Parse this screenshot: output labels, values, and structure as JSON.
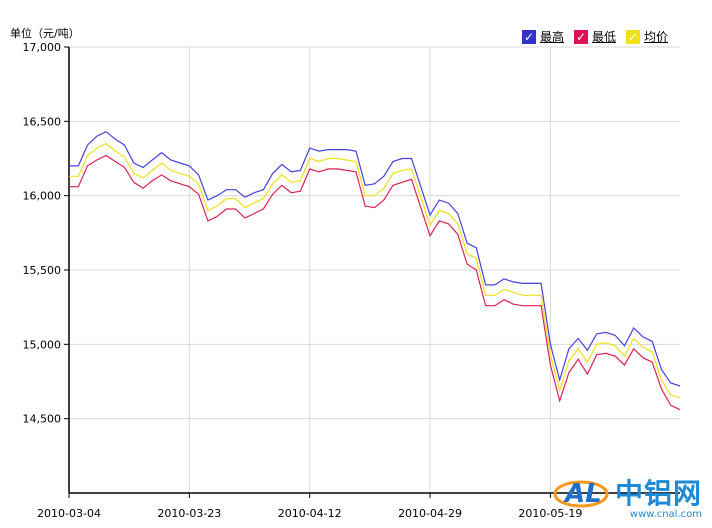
{
  "unit_label": "单位（元/吨）",
  "legend": [
    {
      "name": "最高",
      "color": "#4444dd",
      "box": "#3333cc"
    },
    {
      "name": "最低",
      "color": "#dd2255",
      "box": "#dd1155"
    },
    {
      "name": "均价",
      "color": "#f2e01a",
      "box": "#f2e01a"
    }
  ],
  "watermark": {
    "brand": "中铝网",
    "url": "www.cnal.com"
  },
  "chart_data": {
    "type": "line",
    "ylim": [
      14000,
      17000
    ],
    "yticks": [
      14500,
      15000,
      15500,
      16000,
      16500,
      17000
    ],
    "ytick_labels": [
      "14,500",
      "15,000",
      "15,500",
      "16,000",
      "16,500",
      "17,000"
    ],
    "xtick_labels": [
      "2010-03-04",
      "2010-03-23",
      "2010-04-12",
      "2010-04-29",
      "2010-05-19"
    ],
    "xtick_index": [
      0,
      13,
      26,
      39,
      52
    ],
    "grid": true,
    "legend_position": "top-right",
    "series": [
      {
        "name": "最高",
        "color": "#4444dd",
        "values": [
          16200,
          16200,
          16340,
          16400,
          16430,
          16380,
          16340,
          16220,
          16190,
          16240,
          16290,
          16240,
          16220,
          16200,
          16140,
          15970,
          16000,
          16040,
          16040,
          15990,
          16020,
          16040,
          16150,
          16210,
          16160,
          16170,
          16320,
          16300,
          16310,
          16310,
          16310,
          16300,
          16070,
          16080,
          16130,
          16230,
          16250,
          16250,
          16060,
          15870,
          15970,
          15950,
          15880,
          15680,
          15650,
          15400,
          15400,
          15440,
          15420,
          15410,
          15410,
          15410,
          15000,
          14760,
          14970,
          15040,
          14960,
          15070,
          15080,
          15060,
          14990,
          15110,
          15050,
          15020,
          14830,
          14740,
          14720
        ]
      },
      {
        "name": "最低",
        "color": "#dd2255",
        "values": [
          16060,
          16060,
          16200,
          16240,
          16270,
          16230,
          16190,
          16090,
          16050,
          16100,
          16140,
          16100,
          16080,
          16060,
          16010,
          15830,
          15860,
          15910,
          15910,
          15850,
          15880,
          15910,
          16010,
          16070,
          16020,
          16030,
          16180,
          16160,
          16180,
          16180,
          16170,
          16160,
          15930,
          15920,
          15970,
          16070,
          16090,
          16110,
          15920,
          15730,
          15830,
          15810,
          15740,
          15540,
          15500,
          15260,
          15260,
          15300,
          15270,
          15260,
          15260,
          15260,
          14860,
          14620,
          14810,
          14900,
          14800,
          14930,
          14940,
          14920,
          14860,
          14970,
          14910,
          14880,
          14700,
          14590,
          14560
        ]
      },
      {
        "name": "均价",
        "color": "#f2e01a",
        "values": [
          16130,
          16130,
          16270,
          16320,
          16350,
          16300,
          16260,
          16150,
          16120,
          16170,
          16220,
          16170,
          16150,
          16130,
          16080,
          15900,
          15930,
          15980,
          15980,
          15920,
          15950,
          15980,
          16080,
          16140,
          16090,
          16100,
          16250,
          16230,
          16250,
          16250,
          16240,
          16230,
          16000,
          16000,
          16050,
          16150,
          16170,
          16180,
          15990,
          15800,
          15900,
          15880,
          15810,
          15610,
          15580,
          15330,
          15330,
          15370,
          15350,
          15330,
          15330,
          15330,
          14930,
          14690,
          14890,
          14970,
          14880,
          15000,
          15010,
          14990,
          14920,
          15040,
          14980,
          14950,
          14760,
          14660,
          14640
        ]
      }
    ]
  }
}
